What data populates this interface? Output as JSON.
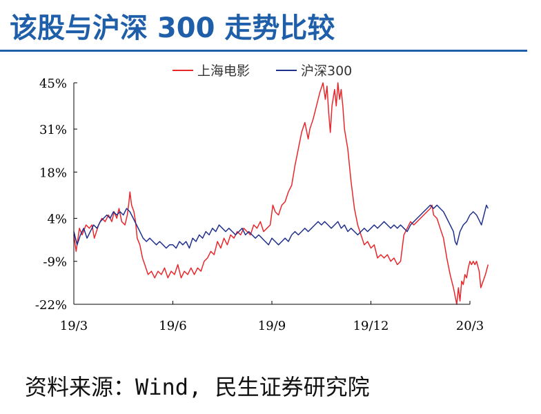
{
  "title": "该股与沪深 300 走势比较",
  "source": "资料来源：Wind, 民生证券研究院",
  "chart_data": {
    "type": "line",
    "x_ticks": [
      "19/3",
      "19/6",
      "19/9",
      "19/12",
      "20/3"
    ],
    "y_ticks": [
      "45%",
      "31%",
      "18%",
      "4%",
      "-9%",
      "-22%"
    ],
    "y_tick_values": [
      45,
      31,
      18,
      4,
      -9,
      -22
    ],
    "ylim": [
      -22,
      45
    ],
    "x_range": [
      0,
      12
    ],
    "legend_position": "top-center",
    "grid": false,
    "series": [
      {
        "name": "上海电影",
        "color": "#e8262a",
        "points": [
          [
            0.0,
            -1
          ],
          [
            0.07,
            -6
          ],
          [
            0.17,
            1
          ],
          [
            0.25,
            -1
          ],
          [
            0.37,
            2
          ],
          [
            0.47,
            1
          ],
          [
            0.55,
            2
          ],
          [
            0.62,
            -2
          ],
          [
            0.75,
            2
          ],
          [
            0.85,
            4
          ],
          [
            0.95,
            3
          ],
          [
            1.05,
            5
          ],
          [
            1.15,
            3
          ],
          [
            1.22,
            6
          ],
          [
            1.3,
            4
          ],
          [
            1.37,
            7
          ],
          [
            1.45,
            3
          ],
          [
            1.55,
            2
          ],
          [
            1.62,
            5
          ],
          [
            1.67,
            9
          ],
          [
            1.7,
            12
          ],
          [
            1.75,
            8
          ],
          [
            1.82,
            6
          ],
          [
            1.87,
            3
          ],
          [
            1.92,
            -2
          ],
          [
            2.0,
            -4
          ],
          [
            2.08,
            -8
          ],
          [
            2.15,
            -10
          ],
          [
            2.25,
            -13
          ],
          [
            2.35,
            -12
          ],
          [
            2.45,
            -14
          ],
          [
            2.55,
            -12
          ],
          [
            2.65,
            -13
          ],
          [
            2.75,
            -11
          ],
          [
            2.85,
            -14
          ],
          [
            2.95,
            -12
          ],
          [
            3.05,
            -13
          ],
          [
            3.15,
            -10
          ],
          [
            3.25,
            -14
          ],
          [
            3.35,
            -12
          ],
          [
            3.45,
            -13
          ],
          [
            3.55,
            -11
          ],
          [
            3.65,
            -13
          ],
          [
            3.75,
            -11
          ],
          [
            3.85,
            -12
          ],
          [
            3.95,
            -9
          ],
          [
            4.05,
            -8
          ],
          [
            4.15,
            -6
          ],
          [
            4.25,
            -7
          ],
          [
            4.35,
            -3
          ],
          [
            4.45,
            -5
          ],
          [
            4.55,
            -2
          ],
          [
            4.65,
            -4
          ],
          [
            4.75,
            -1
          ],
          [
            4.85,
            -2
          ],
          [
            4.95,
            0
          ],
          [
            5.05,
            -1
          ],
          [
            5.15,
            1
          ],
          [
            5.25,
            0
          ],
          [
            5.35,
            -1
          ],
          [
            5.45,
            2
          ],
          [
            5.55,
            1
          ],
          [
            5.65,
            3
          ],
          [
            5.75,
            0
          ],
          [
            5.85,
            1
          ],
          [
            5.95,
            2
          ],
          [
            6.03,
            8
          ],
          [
            6.1,
            6
          ],
          [
            6.2,
            5
          ],
          [
            6.3,
            8
          ],
          [
            6.4,
            9
          ],
          [
            6.5,
            12
          ],
          [
            6.6,
            14
          ],
          [
            6.7,
            20
          ],
          [
            6.8,
            25
          ],
          [
            6.9,
            30
          ],
          [
            7.0,
            33
          ],
          [
            7.1,
            28
          ],
          [
            7.15,
            31
          ],
          [
            7.25,
            34
          ],
          [
            7.35,
            38
          ],
          [
            7.45,
            42
          ],
          [
            7.55,
            45
          ],
          [
            7.62,
            40
          ],
          [
            7.67,
            44
          ],
          [
            7.72,
            36
          ],
          [
            7.77,
            30
          ],
          [
            7.82,
            38
          ],
          [
            7.9,
            43
          ],
          [
            7.95,
            38
          ],
          [
            8.0,
            45
          ],
          [
            8.05,
            40
          ],
          [
            8.1,
            43
          ],
          [
            8.15,
            38
          ],
          [
            8.2,
            31
          ],
          [
            8.3,
            25
          ],
          [
            8.4,
            15
          ],
          [
            8.5,
            7
          ],
          [
            8.6,
            2
          ],
          [
            8.7,
            -1
          ],
          [
            8.8,
            -4
          ],
          [
            8.9,
            -3
          ],
          [
            9.0,
            -5
          ],
          [
            9.1,
            -4
          ],
          [
            9.2,
            -8
          ],
          [
            9.3,
            -7
          ],
          [
            9.4,
            -8
          ],
          [
            9.5,
            -7
          ],
          [
            9.6,
            -9
          ],
          [
            9.7,
            -8
          ],
          [
            9.8,
            -10
          ],
          [
            9.9,
            -9
          ],
          [
            9.95,
            -5
          ],
          [
            10.0,
            -1
          ],
          [
            10.1,
            1
          ],
          [
            10.2,
            3
          ],
          [
            10.3,
            2
          ],
          [
            10.4,
            3
          ],
          [
            10.5,
            4
          ],
          [
            10.6,
            5
          ],
          [
            10.7,
            6
          ],
          [
            10.8,
            7
          ],
          [
            10.85,
            8
          ],
          [
            10.9,
            5
          ],
          [
            11.0,
            4
          ],
          [
            11.1,
            1
          ],
          [
            11.2,
            -2
          ],
          [
            11.3,
            -8
          ],
          [
            11.4,
            -13
          ],
          [
            11.5,
            -17
          ],
          [
            11.6,
            -22
          ],
          [
            11.65,
            -17
          ],
          [
            11.7,
            -21
          ],
          [
            11.75,
            -15
          ],
          [
            11.8,
            -16
          ],
          [
            11.85,
            -13
          ],
          [
            11.9,
            -14
          ],
          [
            11.95,
            -11
          ],
          [
            12.0,
            -9
          ],
          [
            12.05,
            -10
          ],
          [
            12.1,
            -9
          ],
          [
            12.15,
            -10
          ],
          [
            12.2,
            -9
          ],
          [
            12.28,
            -12
          ],
          [
            12.33,
            -17
          ],
          [
            12.4,
            -15
          ],
          [
            12.47,
            -13
          ],
          [
            12.55,
            -10
          ]
        ]
      },
      {
        "name": "沪深300",
        "color": "#1f2f8c",
        "points": [
          [
            0.0,
            0
          ],
          [
            0.1,
            -4
          ],
          [
            0.2,
            -1
          ],
          [
            0.3,
            1
          ],
          [
            0.4,
            -2
          ],
          [
            0.5,
            0
          ],
          [
            0.6,
            2
          ],
          [
            0.7,
            1
          ],
          [
            0.8,
            3
          ],
          [
            0.9,
            4
          ],
          [
            1.0,
            5
          ],
          [
            1.1,
            4
          ],
          [
            1.2,
            6
          ],
          [
            1.3,
            5
          ],
          [
            1.4,
            6
          ],
          [
            1.5,
            5
          ],
          [
            1.6,
            7
          ],
          [
            1.7,
            6
          ],
          [
            1.8,
            4
          ],
          [
            1.9,
            2
          ],
          [
            2.0,
            0
          ],
          [
            2.1,
            -2
          ],
          [
            2.2,
            -3
          ],
          [
            2.3,
            -2
          ],
          [
            2.4,
            -3
          ],
          [
            2.5,
            -4
          ],
          [
            2.6,
            -3
          ],
          [
            2.7,
            -4
          ],
          [
            2.8,
            -5
          ],
          [
            2.9,
            -4
          ],
          [
            3.0,
            -4
          ],
          [
            3.1,
            -5
          ],
          [
            3.2,
            -3
          ],
          [
            3.3,
            -4
          ],
          [
            3.4,
            -3
          ],
          [
            3.5,
            -5
          ],
          [
            3.6,
            -2
          ],
          [
            3.7,
            -3
          ],
          [
            3.8,
            -1
          ],
          [
            3.9,
            -2
          ],
          [
            4.0,
            0
          ],
          [
            4.1,
            -1
          ],
          [
            4.2,
            1
          ],
          [
            4.3,
            0
          ],
          [
            4.4,
            2
          ],
          [
            4.5,
            1
          ],
          [
            4.6,
            0
          ],
          [
            4.7,
            1
          ],
          [
            4.8,
            0
          ],
          [
            4.9,
            -1
          ],
          [
            5.0,
            0
          ],
          [
            5.1,
            1
          ],
          [
            5.2,
            -1
          ],
          [
            5.3,
            0
          ],
          [
            5.4,
            -1
          ],
          [
            5.5,
            -2
          ],
          [
            5.6,
            -1
          ],
          [
            5.7,
            -2
          ],
          [
            5.8,
            -3
          ],
          [
            5.9,
            -4
          ],
          [
            6.0,
            -2
          ],
          [
            6.1,
            -3
          ],
          [
            6.2,
            -4
          ],
          [
            6.3,
            -3
          ],
          [
            6.4,
            -2
          ],
          [
            6.5,
            -3
          ],
          [
            6.6,
            -1
          ],
          [
            6.7,
            0
          ],
          [
            6.8,
            -1
          ],
          [
            6.9,
            0
          ],
          [
            7.0,
            1
          ],
          [
            7.1,
            0
          ],
          [
            7.2,
            1
          ],
          [
            7.3,
            2
          ],
          [
            7.4,
            3
          ],
          [
            7.5,
            2
          ],
          [
            7.6,
            3
          ],
          [
            7.7,
            2
          ],
          [
            7.8,
            1
          ],
          [
            7.9,
            2
          ],
          [
            8.0,
            3
          ],
          [
            8.1,
            1
          ],
          [
            8.2,
            2
          ],
          [
            8.3,
            0
          ],
          [
            8.4,
            1
          ],
          [
            8.5,
            0
          ],
          [
            8.6,
            -1
          ],
          [
            8.7,
            0
          ],
          [
            8.8,
            1
          ],
          [
            8.9,
            0
          ],
          [
            9.0,
            1
          ],
          [
            9.1,
            2
          ],
          [
            9.2,
            1
          ],
          [
            9.3,
            2
          ],
          [
            9.4,
            3
          ],
          [
            9.5,
            2
          ],
          [
            9.6,
            1
          ],
          [
            9.7,
            2
          ],
          [
            9.8,
            1
          ],
          [
            9.9,
            2
          ],
          [
            10.0,
            1
          ],
          [
            10.1,
            0
          ],
          [
            10.2,
            2
          ],
          [
            10.3,
            3
          ],
          [
            10.4,
            4
          ],
          [
            10.5,
            5
          ],
          [
            10.6,
            6
          ],
          [
            10.7,
            7
          ],
          [
            10.8,
            8
          ],
          [
            10.9,
            7
          ],
          [
            11.0,
            8
          ],
          [
            11.1,
            7
          ],
          [
            11.2,
            6
          ],
          [
            11.3,
            4
          ],
          [
            11.4,
            2
          ],
          [
            11.5,
            0
          ],
          [
            11.55,
            -3
          ],
          [
            11.6,
            -4
          ],
          [
            11.65,
            -2
          ],
          [
            11.7,
            0
          ],
          [
            11.8,
            2
          ],
          [
            11.9,
            3
          ],
          [
            12.0,
            5
          ],
          [
            12.1,
            6
          ],
          [
            12.2,
            5
          ],
          [
            12.3,
            3
          ],
          [
            12.35,
            2
          ],
          [
            12.4,
            4
          ],
          [
            12.45,
            6
          ],
          [
            12.5,
            8
          ],
          [
            12.55,
            7
          ]
        ]
      }
    ]
  }
}
